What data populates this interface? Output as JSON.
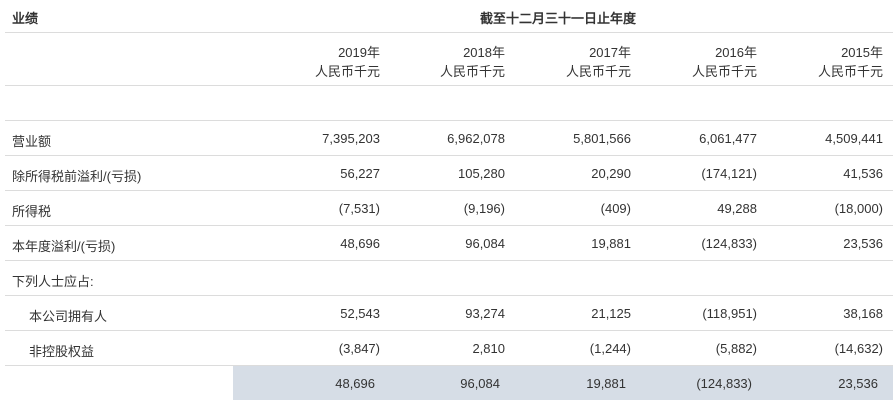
{
  "header": {
    "title": "业绩",
    "period": "截至十二月三十一日止年度"
  },
  "columns": [
    {
      "year": "2019年",
      "unit": "人民币千元"
    },
    {
      "year": "2018年",
      "unit": "人民币千元"
    },
    {
      "year": "2017年",
      "unit": "人民币千元"
    },
    {
      "year": "2016年",
      "unit": "人民币千元"
    },
    {
      "year": "2015年",
      "unit": "人民币千元"
    }
  ],
  "rows": [
    {
      "label": "营业额",
      "values": [
        "7,395,203",
        "6,962,078",
        "5,801,566",
        "6,061,477",
        "4,509,441"
      ]
    },
    {
      "label": "除所得税前溢利/(亏损)",
      "values": [
        "56,227",
        "105,280",
        "20,290",
        "(174,121)",
        "41,536"
      ]
    },
    {
      "label": "所得税",
      "values": [
        "(7,531)",
        "(9,196)",
        "(409)",
        "49,288",
        "(18,000)"
      ]
    },
    {
      "label": "本年度溢利/(亏损)",
      "values": [
        "48,696",
        "96,084",
        "19,881",
        "(124,833)",
        "23,536"
      ]
    },
    {
      "label": "下列人士应占:",
      "values": [
        "",
        "",
        "",
        "",
        ""
      ]
    },
    {
      "label": "本公司拥有人",
      "indent": true,
      "values": [
        "52,543",
        "93,274",
        "21,125",
        "(118,951)",
        "38,168"
      ]
    },
    {
      "label": "非控股权益",
      "indent": true,
      "values": [
        "(3,847)",
        "2,810",
        "(1,244)",
        "(5,882)",
        "(14,632)"
      ]
    }
  ],
  "total": {
    "values": [
      "48,696",
      "96,084",
      "19,881",
      "(124,833)",
      "23,536"
    ],
    "background": "#d6dde6"
  }
}
